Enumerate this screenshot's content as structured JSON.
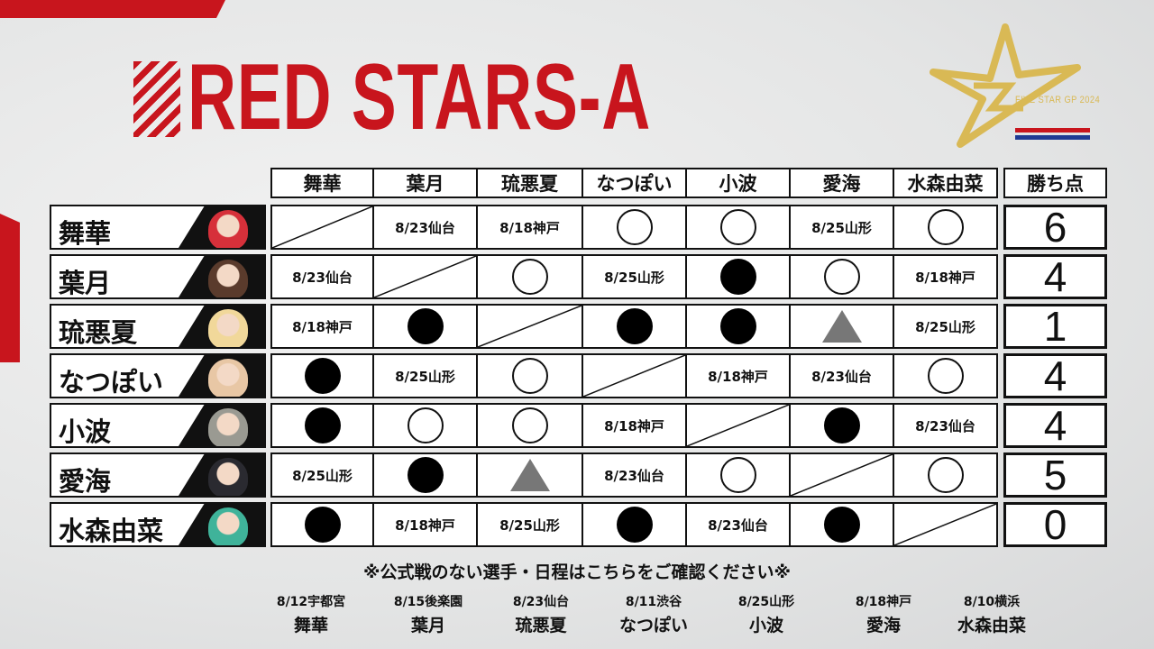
{
  "title": "RED STARS-A",
  "logo": {
    "text": "FIVE STAR GP 2024",
    "gold": "#d9b955",
    "flag_colors": [
      "#c8151d",
      "#1f3a93"
    ]
  },
  "accent": "#c8151d",
  "columns": [
    "舞華",
    "葉月",
    "琉悪夏",
    "なつぽい",
    "小波",
    "愛海",
    "水森由菜"
  ],
  "points_header": "勝ち点",
  "legend": {
    "win": "○",
    "loss": "●",
    "draw": "▲"
  },
  "rows": [
    {
      "name": "舞華",
      "points": "6",
      "photo_color": "#d6303a",
      "results": [
        "-",
        "8/23仙台",
        "8/18神戸",
        "win",
        "win",
        "8/25山形",
        "win"
      ]
    },
    {
      "name": "葉月",
      "points": "4",
      "photo_color": "#5a3b2c",
      "results": [
        "8/23仙台",
        "-",
        "win",
        "8/25山形",
        "loss",
        "win",
        "8/18神戸"
      ]
    },
    {
      "name": "琉悪夏",
      "points": "1",
      "photo_color": "#f1d89a",
      "results": [
        "8/18神戸",
        "loss",
        "-",
        "loss",
        "loss",
        "draw",
        "8/25山形"
      ]
    },
    {
      "name": "なつぽい",
      "points": "4",
      "photo_color": "#e8c7a5",
      "results": [
        "loss",
        "8/25山形",
        "win",
        "-",
        "8/18神戸",
        "8/23仙台",
        "win"
      ]
    },
    {
      "name": "小波",
      "points": "4",
      "photo_color": "#9a9a92",
      "results": [
        "loss",
        "win",
        "win",
        "8/18神戸",
        "-",
        "loss",
        "8/23仙台"
      ]
    },
    {
      "name": "愛海",
      "points": "5",
      "photo_color": "#2a2a30",
      "results": [
        "8/25山形",
        "loss",
        "draw",
        "8/23仙台",
        "win",
        "-",
        "win"
      ]
    },
    {
      "name": "水森由菜",
      "points": "0",
      "photo_color": "#3fb39a",
      "results": [
        "loss",
        "8/18神戸",
        "8/25山形",
        "loss",
        "8/23仙台",
        "loss",
        "-"
      ]
    }
  ],
  "note": "※公式戦のない選手・日程はこちらをご確認ください※",
  "other_matches": [
    {
      "date": "8/12宇都宮",
      "name": "舞華"
    },
    {
      "date": "8/15後楽園",
      "name": "葉月"
    },
    {
      "date": "8/23仙台",
      "name": "琉悪夏"
    },
    {
      "date": "8/11渋谷",
      "name": "なつぽい"
    },
    {
      "date": "8/25山形",
      "name": "小波"
    },
    {
      "date": "8/18神戸",
      "name": "愛海"
    },
    {
      "date": "8/10横浜",
      "name": "水森由菜"
    }
  ]
}
